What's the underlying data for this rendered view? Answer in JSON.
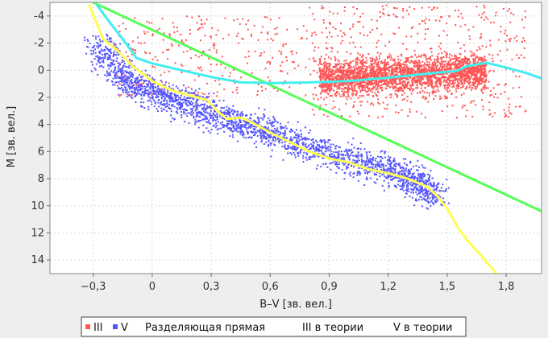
{
  "chart_data": {
    "type": "scatter",
    "xlabel": "B–V [зв. вел.]",
    "ylabel": "M [зв. вел.]",
    "xlim": [
      -0.52,
      1.98
    ],
    "ylim": [
      15.0,
      -5.0
    ],
    "y_inverted": true,
    "grid": true,
    "legend_position": "bottom",
    "x_ticks": [
      {
        "v": -0.3,
        "label": "−0,3"
      },
      {
        "v": 0,
        "label": "0"
      },
      {
        "v": 0.3,
        "label": "0,3"
      },
      {
        "v": 0.6,
        "label": "0,6"
      },
      {
        "v": 0.9,
        "label": "0,9"
      },
      {
        "v": 1.2,
        "label": "1,2"
      },
      {
        "v": 1.5,
        "label": "1,5"
      },
      {
        "v": 1.8,
        "label": "1,8"
      }
    ],
    "y_ticks": [
      {
        "v": -4,
        "label": "-4"
      },
      {
        "v": -2,
        "label": "-2"
      },
      {
        "v": 0,
        "label": "0"
      },
      {
        "v": 2,
        "label": "2"
      },
      {
        "v": 4,
        "label": "4"
      },
      {
        "v": 6,
        "label": "6"
      },
      {
        "v": 8,
        "label": "8"
      },
      {
        "v": 10,
        "label": "10"
      },
      {
        "v": 12,
        "label": "12"
      },
      {
        "v": 14,
        "label": "14"
      }
    ],
    "series": [
      {
        "name": "III",
        "kind": "points",
        "color": "#ff5555",
        "clusters": [
          {
            "x": [
              0.85,
              1.7
            ],
            "y": [
              -1.5,
              2.2
            ],
            "count": 2600
          },
          {
            "x": [
              0.8,
              1.9
            ],
            "y": [
              -4.8,
              3.5
            ],
            "count": 500
          },
          {
            "x": [
              -0.2,
              0.8
            ],
            "y": [
              -4.0,
              2.0
            ],
            "count": 300
          }
        ]
      },
      {
        "name": "V",
        "kind": "points",
        "color": "#5555ff",
        "main_sequence": [
          [
            -0.28,
            -2.0
          ],
          [
            -0.15,
            0.5
          ],
          [
            0.0,
            1.8
          ],
          [
            0.2,
            2.6
          ],
          [
            0.4,
            3.6
          ],
          [
            0.6,
            4.6
          ],
          [
            0.8,
            5.8
          ],
          [
            1.0,
            6.6
          ],
          [
            1.2,
            7.4
          ],
          [
            1.35,
            8.2
          ],
          [
            1.45,
            9.5
          ]
        ],
        "count": 2400
      },
      {
        "name": "Разделяющая прямая",
        "kind": "line",
        "color": "#55ff55",
        "points": [
          [
            -0.3,
            -5.0
          ],
          [
            1.98,
            10.4
          ]
        ]
      },
      {
        "name": "III в теории",
        "kind": "line",
        "color": "#44eeee",
        "points": [
          [
            -0.28,
            -4.8
          ],
          [
            -0.22,
            -3.6
          ],
          [
            -0.15,
            -2.3
          ],
          [
            -0.08,
            -0.9
          ],
          [
            0.0,
            -0.5
          ],
          [
            0.15,
            0.0
          ],
          [
            0.3,
            0.5
          ],
          [
            0.45,
            0.9
          ],
          [
            0.6,
            0.95
          ],
          [
            0.8,
            0.9
          ],
          [
            1.0,
            0.8
          ],
          [
            1.2,
            0.55
          ],
          [
            1.4,
            0.25
          ],
          [
            1.55,
            0.05
          ],
          [
            1.6,
            -0.3
          ],
          [
            1.7,
            -0.55
          ],
          [
            1.8,
            -0.2
          ],
          [
            1.9,
            0.2
          ],
          [
            1.98,
            0.6
          ]
        ]
      },
      {
        "name": "V в теории",
        "kind": "line",
        "color": "#ffff55",
        "points": [
          [
            -0.32,
            -4.8
          ],
          [
            -0.25,
            -2.3
          ],
          [
            -0.18,
            -1.5
          ],
          [
            -0.1,
            -0.3
          ],
          [
            0.0,
            0.8
          ],
          [
            0.1,
            1.5
          ],
          [
            0.2,
            1.9
          ],
          [
            0.28,
            2.2
          ],
          [
            0.33,
            3.0
          ],
          [
            0.38,
            3.6
          ],
          [
            0.45,
            3.5
          ],
          [
            0.5,
            3.8
          ],
          [
            0.6,
            4.6
          ],
          [
            0.7,
            5.3
          ],
          [
            0.8,
            6.0
          ],
          [
            0.9,
            6.5
          ],
          [
            1.0,
            6.8
          ],
          [
            1.1,
            7.3
          ],
          [
            1.2,
            7.6
          ],
          [
            1.3,
            8.0
          ],
          [
            1.4,
            8.6
          ],
          [
            1.45,
            9.3
          ],
          [
            1.5,
            10.2
          ],
          [
            1.55,
            11.5
          ],
          [
            1.6,
            12.5
          ],
          [
            1.68,
            13.8
          ],
          [
            1.75,
            15.0
          ]
        ]
      }
    ]
  },
  "legend": {
    "items": [
      {
        "label": "III",
        "color": "#ff5555",
        "marker": "square"
      },
      {
        "label": "V",
        "color": "#5555ff",
        "marker": "square"
      },
      {
        "label": "Разделяющая прямая",
        "color": "#55ff55",
        "marker": "none"
      },
      {
        "label": "III в теории",
        "color": "#44eeee",
        "marker": "none"
      },
      {
        "label": "V в теории",
        "color": "#ffff55",
        "marker": "none"
      }
    ]
  },
  "colors": {
    "page_background": "#eeeeee",
    "plot_background": "#ffffff",
    "grid": "#d8d8d8"
  }
}
